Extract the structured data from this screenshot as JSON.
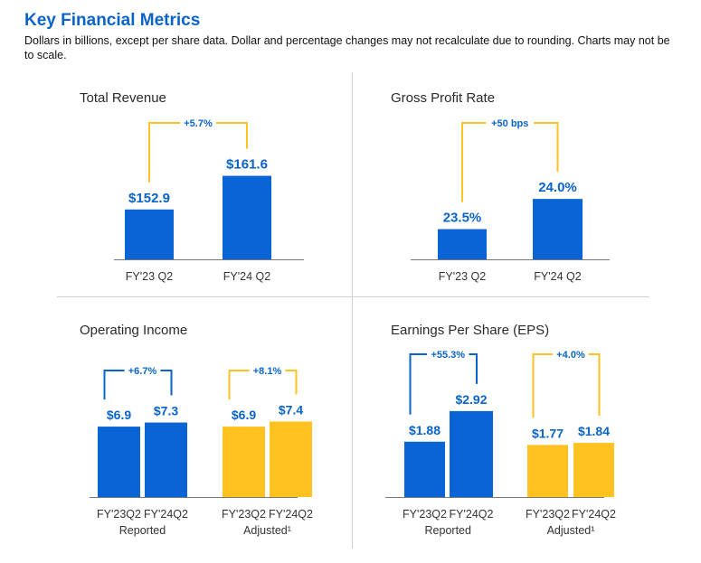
{
  "header": {
    "title": "Key Financial Metrics",
    "subtitle": "Dollars in billions, except per share data.  Dollar and percentage changes may not recalculate due to rounding. Charts may not be to scale."
  },
  "colors": {
    "blue": "#0a64d6",
    "yellow": "#ffc220",
    "label_blue": "#0a64c8",
    "axis": "#777777"
  },
  "chart_data": [
    {
      "id": "total-revenue",
      "type": "bar",
      "title": "Total Revenue",
      "ylim": [
        140,
        165
      ],
      "groups": [
        {
          "label": "",
          "color": "blue",
          "change": "+5.7%",
          "bars": [
            {
              "x": "FY'23 Q2",
              "value": 152.9,
              "label": "$152.9"
            },
            {
              "x": "FY'24 Q2",
              "value": 161.6,
              "label": "$161.6"
            }
          ]
        }
      ]
    },
    {
      "id": "gross-profit-rate",
      "type": "bar",
      "title": "Gross Profit Rate",
      "ylim": [
        23.0,
        24.6
      ],
      "groups": [
        {
          "label": "",
          "color": "blue",
          "change": "+50 bps",
          "bars": [
            {
              "x": "FY'23 Q2",
              "value": 23.5,
              "label": "23.5%"
            },
            {
              "x": "FY'24 Q2",
              "value": 24.0,
              "label": "24.0%"
            }
          ]
        }
      ]
    },
    {
      "id": "operating-income",
      "type": "bar",
      "title": "Operating Income",
      "ylim": [
        0,
        8.5
      ],
      "groups": [
        {
          "label": "Reported",
          "color": "blue",
          "change": "+6.7%",
          "bars": [
            {
              "x": "FY'23Q2",
              "value": 6.9,
              "label": "$6.9"
            },
            {
              "x": "FY'24Q2",
              "value": 7.3,
              "label": "$7.3"
            }
          ]
        },
        {
          "label": "Adjusted¹",
          "color": "yellow",
          "change": "+8.1%",
          "bars": [
            {
              "x": "FY'23Q2",
              "value": 6.9,
              "label": "$6.9"
            },
            {
              "x": "FY'24Q2",
              "value": 7.4,
              "label": "$7.4"
            }
          ]
        }
      ]
    },
    {
      "id": "eps",
      "type": "bar",
      "title": "Earnings Per Share (EPS)",
      "ylim": [
        0,
        3.5
      ],
      "groups": [
        {
          "label": "Reported",
          "color": "blue",
          "change": "+55.3%",
          "bars": [
            {
              "x": "FY'23Q2",
              "value": 1.88,
              "label": "$1.88"
            },
            {
              "x": "FY'24Q2",
              "value": 2.92,
              "label": "$2.92"
            }
          ]
        },
        {
          "label": "Adjusted¹",
          "color": "yellow",
          "change": "+4.0%",
          "bars": [
            {
              "x": "FY'23Q2",
              "value": 1.77,
              "label": "$1.77"
            },
            {
              "x": "FY'24Q2",
              "value": 1.84,
              "label": "$1.84"
            }
          ]
        }
      ]
    }
  ]
}
